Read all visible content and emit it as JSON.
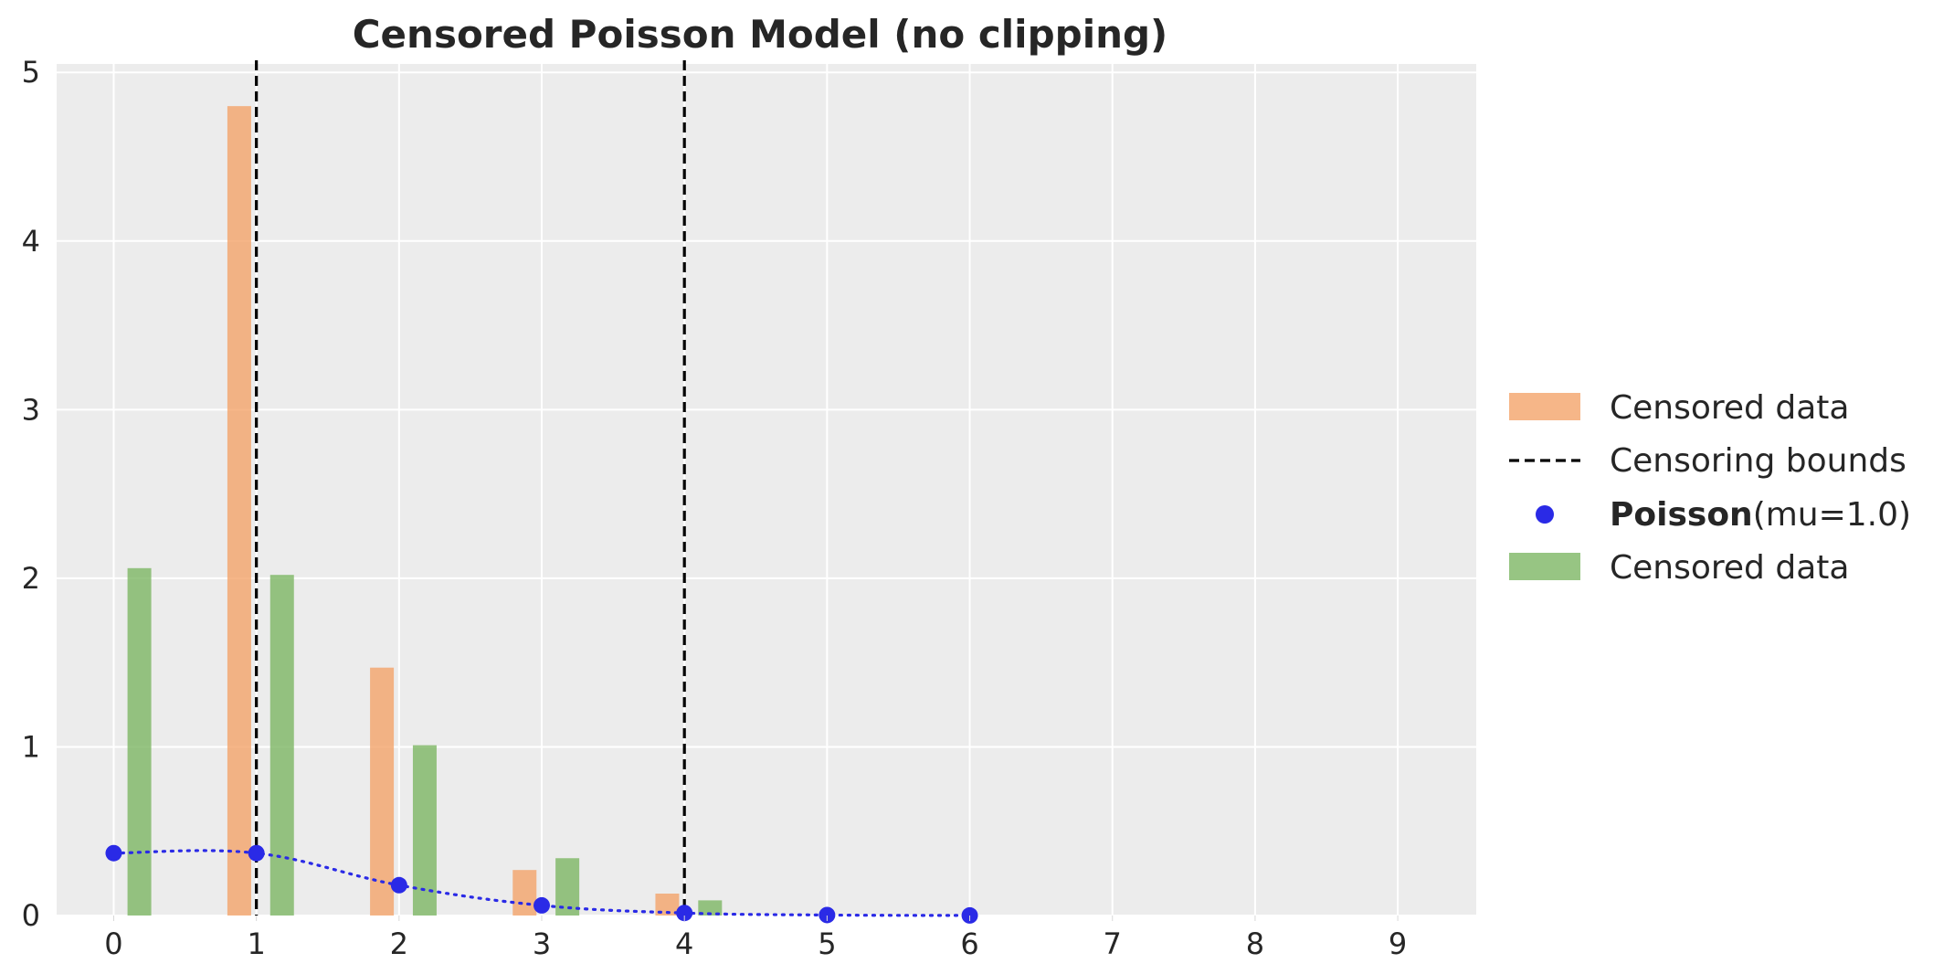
{
  "chart_data": {
    "type": "bar",
    "title": "Censored Poisson Model (no clipping)",
    "xlabel": "",
    "ylabel": "",
    "xlim": [
      -0.4,
      9.55
    ],
    "ylim": [
      0,
      5.05
    ],
    "x_ticks": [
      "0",
      "1",
      "2",
      "3",
      "4",
      "5",
      "6",
      "7",
      "8",
      "9"
    ],
    "y_ticks": [
      "0",
      "1",
      "2",
      "3",
      "4",
      "5"
    ],
    "grid": true,
    "legend_position": "right",
    "series": [
      {
        "name": "Censored data",
        "kind": "bar",
        "color": "#f4a266",
        "x": [
          1,
          2,
          3,
          4
        ],
        "values": [
          4.8,
          1.47,
          0.27,
          0.13
        ]
      },
      {
        "name": "Censored data",
        "kind": "bar",
        "color": "#7ab560",
        "x": [
          0,
          1,
          2,
          3,
          4
        ],
        "values": [
          2.06,
          2.02,
          1.01,
          0.34,
          0.09
        ]
      },
      {
        "name": "Poisson(mu=1.0)",
        "kind": "dotted-line-points",
        "color": "#2a2ae6",
        "x": [
          0,
          1,
          2,
          3,
          4,
          5,
          6
        ],
        "values": [
          0.37,
          0.37,
          0.18,
          0.06,
          0.015,
          0.003,
          0.0005
        ]
      }
    ],
    "censoring_bounds": {
      "name": "Censoring bounds",
      "values": [
        1,
        4
      ],
      "color": "#000000"
    },
    "legend": [
      {
        "label": "Censored data",
        "marker": "patch",
        "color": "#f4a266"
      },
      {
        "label": "Censoring bounds",
        "marker": "dashed-line",
        "color": "#000000"
      },
      {
        "label_bold": "Poisson",
        "label_rest": "(mu=1.0)",
        "marker": "dot",
        "color": "#2a2ae6"
      },
      {
        "label": "Censored data",
        "marker": "patch",
        "color": "#7ab560"
      }
    ],
    "colors": {
      "plot_background": "#ececec",
      "grid": "#ffffff",
      "text": "#262626"
    }
  }
}
